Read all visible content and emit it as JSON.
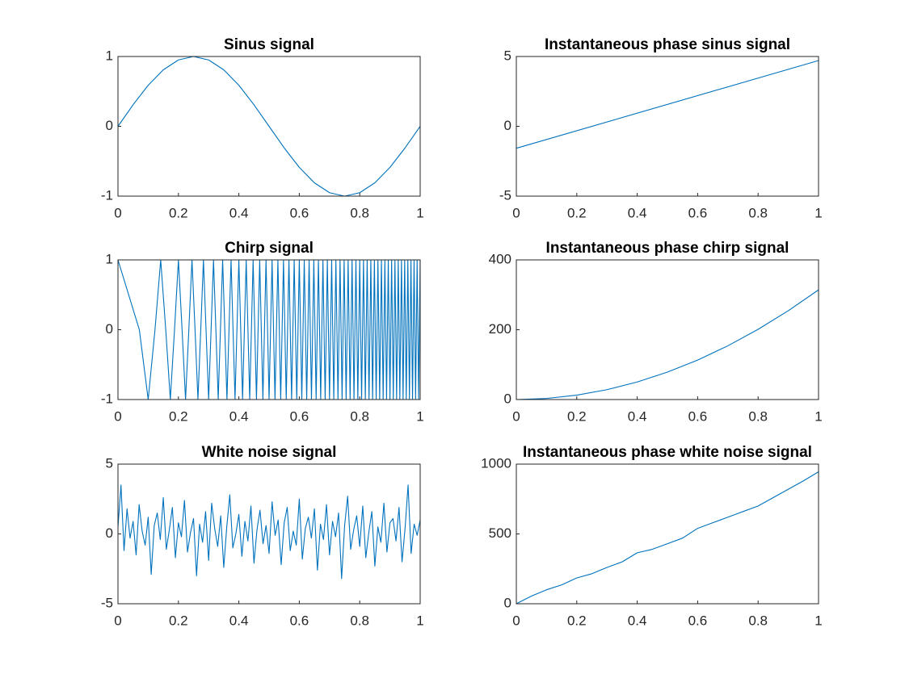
{
  "chart_data": [
    {
      "type": "line",
      "title": "Sinus signal",
      "color": "#0072bd",
      "x": [
        0,
        0.05,
        0.1,
        0.15,
        0.2,
        0.25,
        0.3,
        0.35,
        0.4,
        0.45,
        0.5,
        0.55,
        0.6,
        0.65,
        0.7,
        0.75,
        0.8,
        0.85,
        0.9,
        0.95,
        1
      ],
      "values": [
        0,
        0.309,
        0.588,
        0.809,
        0.951,
        1,
        0.951,
        0.809,
        0.588,
        0.309,
        0,
        -0.309,
        -0.588,
        -0.809,
        -0.951,
        -1,
        -0.951,
        -0.809,
        -0.588,
        -0.309,
        0
      ],
      "xlim": [
        0,
        1
      ],
      "ylim": [
        -1,
        1
      ],
      "xticks": [
        0,
        0.2,
        0.4,
        0.6,
        0.8,
        1
      ],
      "yticks": [
        -1,
        0,
        1
      ]
    },
    {
      "type": "line",
      "title": "Instantaneous phase sinus signal",
      "color": "#0072bd",
      "x": [
        0,
        1
      ],
      "values": [
        -1.571,
        4.712
      ],
      "xlim": [
        0,
        1
      ],
      "ylim": [
        -5,
        5
      ],
      "xticks": [
        0,
        0.2,
        0.4,
        0.6,
        0.8,
        1
      ],
      "yticks": [
        -5,
        0,
        5
      ]
    },
    {
      "type": "line",
      "title": "Chirp signal",
      "color": "#0072bd",
      "x": [
        0,
        0.0707,
        0.1,
        0.1225,
        0.1414,
        0.1581,
        0.1732,
        0.1871,
        0.2,
        0.2121,
        0.2236,
        0.2345,
        0.2449,
        0.255,
        0.2646,
        0.2739,
        0.2828,
        0.3,
        0.3162,
        0.3317,
        0.3464,
        0.3606,
        0.3742,
        0.3873,
        0.4,
        0.4123,
        0.4243,
        0.4359,
        0.4472,
        0.4583,
        0.469,
        0.4796,
        0.4899,
        0.5,
        0.5099,
        0.5196,
        0.5292,
        0.5385,
        0.5477,
        0.5568,
        0.5657,
        0.5745,
        0.5831,
        0.5916,
        0.6,
        0.6083,
        0.6164,
        0.6245,
        0.6325,
        0.6403,
        0.6481,
        0.6557,
        0.6633,
        0.6708,
        0.6782,
        0.6856,
        0.6928,
        0.7,
        0.7071,
        0.7141,
        0.7211,
        0.728,
        0.7348,
        0.7416,
        0.7483,
        0.755,
        0.7616,
        0.7681,
        0.7746,
        0.781,
        0.7874,
        0.7937,
        0.8,
        0.8062,
        0.8124,
        0.8185,
        0.8246,
        0.8307,
        0.8367,
        0.8426,
        0.8485,
        0.8544,
        0.8602,
        0.866,
        0.8718,
        0.8775,
        0.8832,
        0.8888,
        0.8944,
        0.9,
        0.9055,
        0.911,
        0.9165,
        0.922,
        0.9274,
        0.9327,
        0.9381,
        0.9434,
        0.9487,
        0.9539,
        0.9592,
        0.9644,
        0.9695,
        0.9747,
        0.9798,
        0.9849,
        0.9899,
        0.995,
        1
      ],
      "values": [
        1,
        0,
        -1,
        0,
        1,
        0,
        -1,
        0,
        1,
        0,
        -1,
        0,
        1,
        0,
        -1,
        0,
        1,
        -1,
        1,
        -1,
        1,
        -1,
        1,
        -1,
        1,
        -1,
        1,
        -1,
        1,
        -1,
        1,
        -1,
        1,
        -1,
        1,
        -1,
        1,
        -1,
        1,
        -1,
        1,
        -1,
        1,
        -1,
        1,
        -1,
        1,
        -1,
        1,
        -1,
        1,
        -1,
        1,
        -1,
        1,
        -1,
        1,
        -1,
        1,
        -1,
        1,
        -1,
        1,
        -1,
        1,
        -1,
        1,
        -1,
        1,
        -1,
        1,
        -1,
        1,
        -1,
        1,
        -1,
        1,
        -1,
        1,
        -1,
        1,
        -1,
        1,
        -1,
        1,
        -1,
        1,
        -1,
        1,
        -1,
        1,
        -1,
        1,
        -1,
        1,
        -1,
        1,
        -1,
        1,
        -1,
        1,
        -1,
        1,
        -1,
        1,
        -1,
        1,
        -1,
        1
      ],
      "xlim": [
        0,
        1
      ],
      "ylim": [
        -1,
        1
      ],
      "xticks": [
        0,
        0.2,
        0.4,
        0.6,
        0.8,
        1
      ],
      "yticks": [
        -1,
        0,
        1
      ]
    },
    {
      "type": "line",
      "title": "Instantaneous phase chirp signal",
      "color": "#0072bd",
      "x": [
        0,
        0.1,
        0.2,
        0.3,
        0.4,
        0.5,
        0.6,
        0.7,
        0.8,
        0.9,
        1
      ],
      "values": [
        0,
        3.14,
        12.57,
        28.27,
        50.27,
        78.54,
        113.1,
        153.9,
        201.1,
        254.5,
        314.2
      ],
      "xlim": [
        0,
        1
      ],
      "ylim": [
        0,
        400
      ],
      "xticks": [
        0,
        0.2,
        0.4,
        0.6,
        0.8,
        1
      ],
      "yticks": [
        0,
        200,
        400
      ]
    },
    {
      "type": "line",
      "title": "White noise signal",
      "color": "#0072bd",
      "x": [
        0,
        0.01,
        0.02,
        0.03,
        0.04,
        0.05,
        0.06,
        0.07,
        0.08,
        0.09,
        0.1,
        0.11,
        0.12,
        0.13,
        0.14,
        0.15,
        0.16,
        0.17,
        0.18,
        0.19,
        0.2,
        0.21,
        0.22,
        0.23,
        0.24,
        0.25,
        0.26,
        0.27,
        0.28,
        0.29,
        0.3,
        0.31,
        0.32,
        0.33,
        0.34,
        0.35,
        0.36,
        0.37,
        0.38,
        0.39,
        0.4,
        0.41,
        0.42,
        0.43,
        0.44,
        0.45,
        0.46,
        0.47,
        0.48,
        0.49,
        0.5,
        0.51,
        0.52,
        0.53,
        0.54,
        0.55,
        0.56,
        0.57,
        0.58,
        0.59,
        0.6,
        0.61,
        0.62,
        0.63,
        0.64,
        0.65,
        0.66,
        0.67,
        0.68,
        0.69,
        0.7,
        0.71,
        0.72,
        0.73,
        0.74,
        0.75,
        0.76,
        0.77,
        0.78,
        0.79,
        0.8,
        0.81,
        0.82,
        0.83,
        0.84,
        0.85,
        0.86,
        0.87,
        0.88,
        0.89,
        0.9,
        0.91,
        0.92,
        0.93,
        0.94,
        0.95,
        0.96,
        0.97,
        0.98,
        0.99,
        1
      ],
      "values": [
        0.5,
        3.5,
        -1.2,
        1.8,
        -0.3,
        0.9,
        -1.5,
        2.1,
        0.2,
        -0.8,
        1.2,
        -2.9,
        0.6,
        1.5,
        -0.4,
        2.6,
        -1.1,
        0.3,
        1.9,
        -1.7,
        0.8,
        -0.2,
        2.4,
        -1.3,
        0.1,
        1.1,
        -3.0,
        0.7,
        -0.6,
        1.6,
        -1.9,
        2.2,
        0.4,
        -0.9,
        1.3,
        -2.4,
        0.5,
        2.8,
        -1.0,
        0.0,
        1.4,
        -1.6,
        0.9,
        -0.5,
        2.0,
        -2.1,
        0.3,
        1.7,
        -0.7,
        0.6,
        -1.4,
        2.3,
        -0.1,
        1.0,
        -2.2,
        0.8,
        1.9,
        -1.2,
        0.2,
        -0.8,
        2.5,
        -1.8,
        0.4,
        1.2,
        -0.3,
        1.8,
        -2.6,
        0.7,
        -0.4,
        2.1,
        -1.5,
        0.9,
        -0.2,
        1.5,
        -3.2,
        0.6,
        2.7,
        -1.1,
        0.3,
        1.3,
        -0.9,
        2.0,
        -1.7,
        0.1,
        1.6,
        -2.3,
        0.5,
        -0.6,
        2.2,
        -1.3,
        0.8,
        1.1,
        -0.5,
        1.9,
        -2.0,
        0.4,
        3.5,
        -1.4,
        0.7,
        -0.1,
        1.0
      ],
      "xlim": [
        0,
        1
      ],
      "ylim": [
        -5,
        5
      ],
      "xticks": [
        0,
        0.2,
        0.4,
        0.6,
        0.8,
        1
      ],
      "yticks": [
        -5,
        0,
        5
      ]
    },
    {
      "type": "line",
      "title": "Instantaneous phase white noise signal",
      "color": "#0072bd",
      "x": [
        0,
        0.05,
        0.1,
        0.15,
        0.2,
        0.25,
        0.3,
        0.35,
        0.4,
        0.45,
        0.5,
        0.55,
        0.6,
        0.65,
        0.7,
        0.75,
        0.8,
        0.85,
        0.9,
        0.95,
        1
      ],
      "values": [
        0,
        55,
        100,
        135,
        185,
        215,
        260,
        300,
        365,
        390,
        430,
        470,
        540,
        580,
        620,
        660,
        700,
        760,
        820,
        880,
        945
      ],
      "xlim": [
        0,
        1
      ],
      "ylim": [
        0,
        1000
      ],
      "xticks": [
        0,
        0.2,
        0.4,
        0.6,
        0.8,
        1
      ],
      "yticks": [
        0,
        500,
        1000
      ]
    }
  ]
}
